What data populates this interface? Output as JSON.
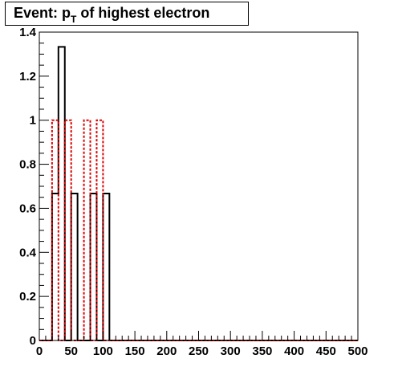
{
  "title": {
    "prefix": "Event: p",
    "subscript": "T",
    "suffix": " of highest electron"
  },
  "colors": {
    "series_black": "#000000",
    "series_red": "#e00000",
    "axis": "#000000",
    "background": "#ffffff"
  },
  "chart_data": {
    "type": "bar",
    "title": "Event: p_T of highest electron",
    "xlabel": "",
    "ylabel": "",
    "xlim": [
      0,
      500
    ],
    "ylim": [
      0,
      1.4
    ],
    "grid": false,
    "legend": "none",
    "x_ticks": [
      0,
      50,
      100,
      150,
      200,
      250,
      300,
      350,
      400,
      450,
      500
    ],
    "y_ticks": [
      0,
      0.2,
      0.4,
      0.6,
      0.8,
      1,
      1.2,
      1.4
    ],
    "bin_width": 10,
    "series": [
      {
        "style": "solid",
        "color": "#000000",
        "bins": [
          {
            "low": 0,
            "value": 0
          },
          {
            "low": 10,
            "value": 0
          },
          {
            "low": 20,
            "value": 0.667
          },
          {
            "low": 30,
            "value": 1.333
          },
          {
            "low": 40,
            "value": 0
          },
          {
            "low": 50,
            "value": 0.667
          },
          {
            "low": 60,
            "value": 0
          },
          {
            "low": 70,
            "value": 0
          },
          {
            "low": 80,
            "value": 0.667
          },
          {
            "low": 90,
            "value": 0
          },
          {
            "low": 100,
            "value": 0.667
          }
        ]
      },
      {
        "style": "dotted",
        "color": "#e00000",
        "bins": [
          {
            "low": 0,
            "value": 0
          },
          {
            "low": 10,
            "value": 0
          },
          {
            "low": 20,
            "value": 1
          },
          {
            "low": 30,
            "value": 0
          },
          {
            "low": 40,
            "value": 1
          },
          {
            "low": 50,
            "value": 0
          },
          {
            "low": 60,
            "value": 0
          },
          {
            "low": 70,
            "value": 1
          },
          {
            "low": 80,
            "value": 0
          },
          {
            "low": 90,
            "value": 1
          },
          {
            "low": 100,
            "value": 0
          }
        ]
      }
    ]
  }
}
